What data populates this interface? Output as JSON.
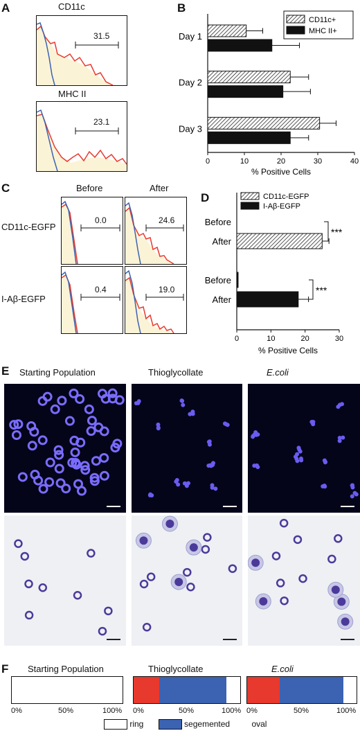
{
  "panels": {
    "A": {
      "letter": "A",
      "hist1": {
        "title": "CD11c",
        "gate_value": "31.5"
      },
      "hist2": {
        "title": "MHC II",
        "gate_value": "23.1"
      }
    },
    "B": {
      "letter": "B"
    },
    "C": {
      "letter": "C",
      "col_before": "Before",
      "col_after": "After",
      "row1_label": "CD11c-EGFP",
      "row2_label": "I-Aβ-EGFP",
      "values": {
        "r1_before": "0.0",
        "r1_after": "24.6",
        "r2_before": "0.4",
        "r2_after": "19.0"
      }
    },
    "D": {
      "letter": "D",
      "significance": "***"
    },
    "E": {
      "letter": "E",
      "col1": "Starting Population",
      "col2": "Thioglycollate",
      "col3": "E.coli"
    },
    "F": {
      "letter": "F",
      "titles": [
        "Starting Population",
        "Thioglycollate",
        "E.coli"
      ],
      "ticks": [
        "0%",
        "50%",
        "100%"
      ],
      "legend": {
        "ring": "ring",
        "segmented": "segemented",
        "oval": "oval"
      },
      "colors": {
        "red": "#e8392e",
        "blue": "#3b63b2",
        "white": "#ffffff"
      },
      "fractions": {
        "starting": {
          "red": 0,
          "blue": 0,
          "white": 1.0
        },
        "thio": {
          "red": 0.24,
          "blue": 0.63,
          "white": 0.13
        },
        "ecoli": {
          "red": 0.3,
          "blue": 0.58,
          "white": 0.12
        }
      }
    }
  },
  "chart_data": [
    {
      "type": "bar",
      "panel": "B",
      "categories": [
        "Day 1",
        "Day 2",
        "Day 3"
      ],
      "series": [
        {
          "name": "CD11c+",
          "values": [
            10.5,
            22.5,
            30.5
          ],
          "errors": [
            4.5,
            5.0,
            4.5
          ]
        },
        {
          "name": "MHC II+",
          "values": [
            17.5,
            20.5,
            22.5
          ],
          "errors": [
            7.5,
            7.5,
            5.0
          ]
        }
      ],
      "xlabel": "% Positive Cells",
      "xlim": [
        0,
        40
      ],
      "xticks": [
        0,
        10,
        20,
        30,
        40
      ],
      "orientation": "horizontal",
      "legend": "top-right"
    },
    {
      "type": "bar",
      "panel": "D",
      "categories": [
        "Before",
        "After",
        "Before",
        "After"
      ],
      "series": [
        {
          "name": "CD11c-EGFP",
          "values": [
            0,
            25,
            null,
            null
          ],
          "errors": [
            0,
            2,
            null,
            null
          ]
        },
        {
          "name": "I-Aβ-EGFP",
          "values": [
            null,
            null,
            0.4,
            18
          ],
          "errors": [
            null,
            null,
            0,
            3
          ]
        }
      ],
      "xlabel": "% Positive Cells",
      "xlim": [
        0,
        30
      ],
      "xticks": [
        0,
        10,
        20,
        30
      ],
      "orientation": "horizontal",
      "legend": "top"
    }
  ]
}
